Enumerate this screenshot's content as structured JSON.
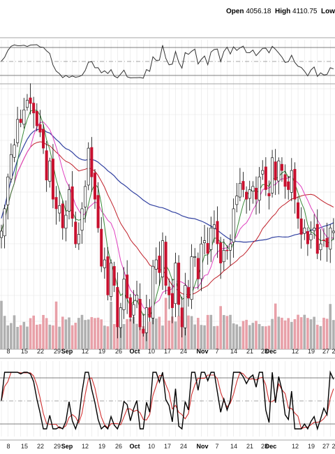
{
  "header": {
    "open_label": "Open",
    "open_value": "4056.18",
    "high_label": "High",
    "high_value": "4110.75",
    "low_label": "Low"
  },
  "chart_data": {
    "type": "candlestick",
    "x_tick_labels": [
      "8",
      "15",
      "22",
      "29",
      "Sep",
      "12",
      "19",
      "26",
      "Oct",
      "10",
      "17",
      "24",
      "Nov",
      "7",
      "14",
      "21",
      "28",
      "Dec",
      "12",
      "19",
      "27",
      "2"
    ],
    "month_labels": [
      "Sep",
      "Oct",
      "Nov",
      "Dec"
    ],
    "colors": {
      "up_candle": "#ffffff",
      "down_candle": "#c8102e",
      "ma_short": "#3a8a3a",
      "ma_mid": "#e040c0",
      "ma_long": "#c0202a",
      "ma_longest": "#3040a0",
      "volume_up": "#b0b0b0",
      "volume_down": "#e8a0a8",
      "stoch_k": "#000000",
      "stoch_d": "#d03030",
      "osc_line": "#333333"
    },
    "closes": [
      3890,
      3960,
      4060,
      4130,
      4160,
      4240,
      4230,
      4270,
      4300,
      4290,
      4260,
      4220,
      4200,
      4150,
      4050,
      4110,
      3990,
      3960,
      3970,
      3900,
      3940,
      4020,
      3930,
      3850,
      3880,
      3960,
      4030,
      4150,
      4060,
      3990,
      3900,
      3780,
      3800,
      3690,
      3790,
      3720,
      3590,
      3650,
      3740,
      3680,
      3620,
      3660,
      3690,
      3590,
      3570,
      3650,
      3620,
      3780,
      3800,
      3760,
      3860,
      3720,
      3690,
      3650,
      3790,
      3660,
      3590,
      3720,
      3680,
      3810,
      3810,
      3740,
      3850,
      3860,
      3820,
      3900,
      3910,
      3850,
      3790,
      3830,
      3830,
      3850,
      3960,
      4000,
      4040,
      4020,
      3990,
      4020,
      4030,
      3990,
      4060,
      4080,
      4020,
      4000,
      4120,
      4050,
      4110,
      4080,
      4030,
      4020,
      4080,
      3990,
      3930,
      3880,
      3900,
      3850,
      3880,
      3900,
      3820,
      3850,
      3860,
      3840,
      3900,
      3890
    ]
  }
}
